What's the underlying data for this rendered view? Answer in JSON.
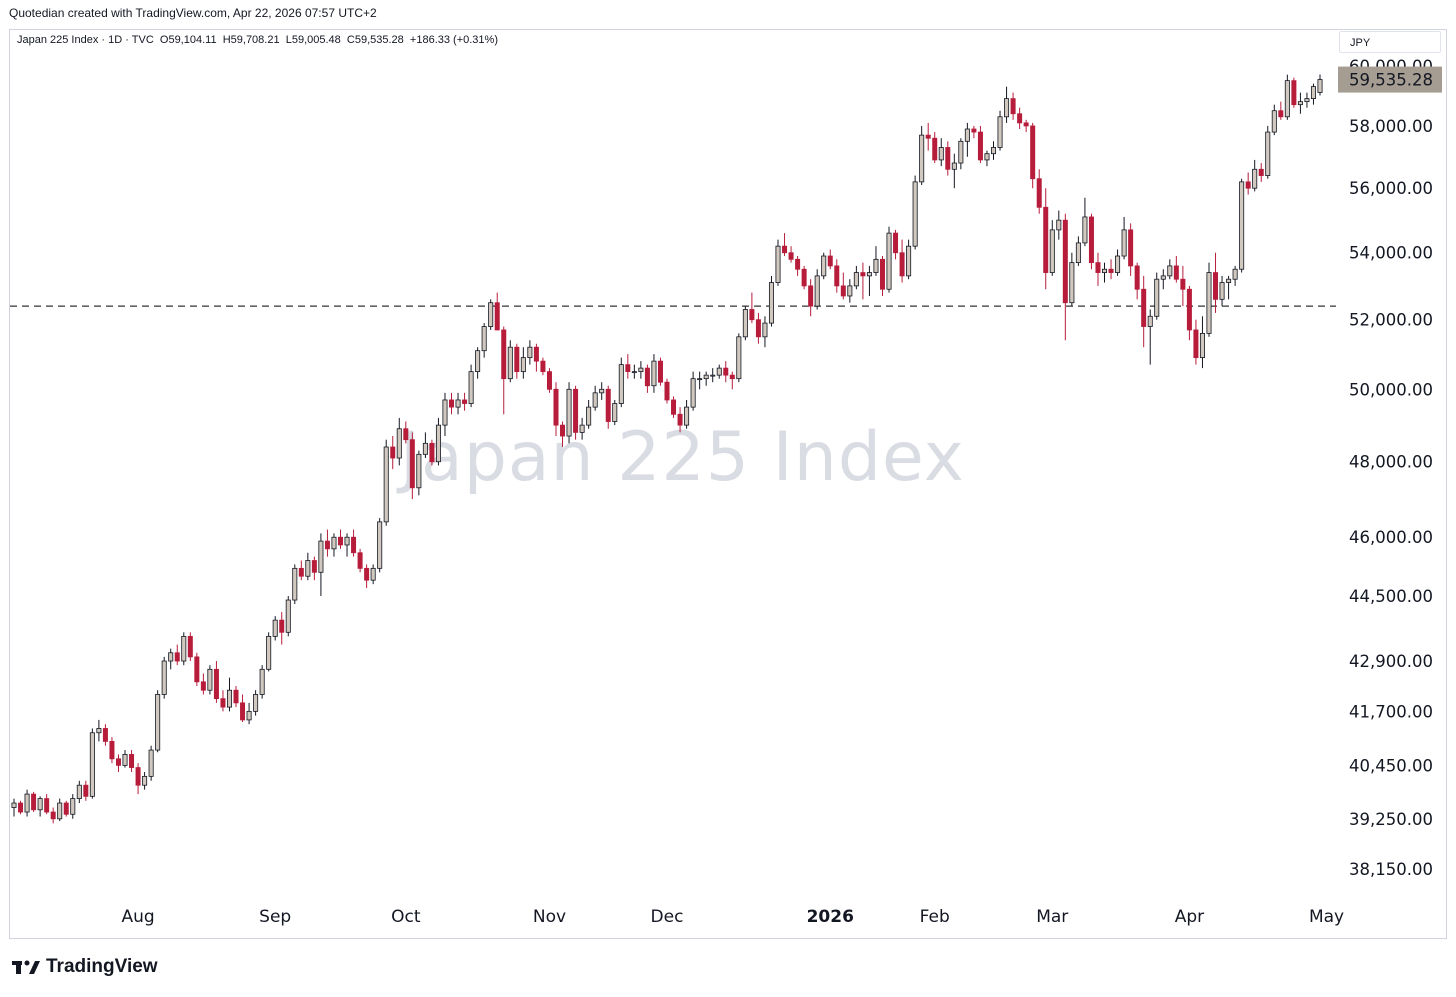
{
  "header": {
    "credit": "Quotedian created with TradingView.com, Apr 22, 2026 07:57 UTC+2"
  },
  "symbol": {
    "name": "Japan 225 Index · 1D · TVC",
    "o": "O59,104.11",
    "h": "H59,708.21",
    "l": "L59,005.48",
    "c": "C59,535.28",
    "chg": "+186.33 (+0.31%)"
  },
  "currency": "JPY",
  "watermark": "Japan 225 Index",
  "footer": {
    "brand": "TradingView",
    "logo_icon": "tradingview-logo-icon"
  },
  "colors": {
    "up": "#d1c9bf",
    "down": "#b71c3b",
    "wick": "#131722",
    "last_price_bg": "#a59c92",
    "level_line": "#333333"
  },
  "chart_data": {
    "type": "candlestick",
    "title": "Japan 225 Index",
    "scale": "log",
    "ylim": [
      37600,
      60400
    ],
    "yticks": [
      {
        "value": 60000,
        "label": "60,000.00"
      },
      {
        "value": 58000,
        "label": "58,000.00"
      },
      {
        "value": 56000,
        "label": "56,000.00"
      },
      {
        "value": 54000,
        "label": "54,000.00"
      },
      {
        "value": 52000,
        "label": "52,000.00"
      },
      {
        "value": 50000,
        "label": "50,000.00"
      },
      {
        "value": 48000,
        "label": "48,000.00"
      },
      {
        "value": 46000,
        "label": "46,000.00"
      },
      {
        "value": 44500,
        "label": "44,500.00"
      },
      {
        "value": 42900,
        "label": "42,900.00"
      },
      {
        "value": 41700,
        "label": "41,700.00"
      },
      {
        "value": 40450,
        "label": "40,450.00"
      },
      {
        "value": 39250,
        "label": "39,250.00"
      },
      {
        "value": 38150,
        "label": "38,150.00"
      }
    ],
    "xticks": [
      {
        "label": "Aug",
        "index": 19,
        "bold": false
      },
      {
        "label": "Sep",
        "index": 40,
        "bold": false
      },
      {
        "label": "Oct",
        "index": 60,
        "bold": false
      },
      {
        "label": "Nov",
        "index": 82,
        "bold": false
      },
      {
        "label": "Dec",
        "index": 100,
        "bold": false
      },
      {
        "label": "2026",
        "index": 125,
        "bold": true
      },
      {
        "label": "Feb",
        "index": 141,
        "bold": false
      },
      {
        "label": "Mar",
        "index": 159,
        "bold": false
      },
      {
        "label": "Apr",
        "index": 180,
        "bold": false
      },
      {
        "label": "May",
        "index": 201,
        "bold": false
      }
    ],
    "level_line": 52400,
    "last_price": {
      "value": 59535.28,
      "label": "59,535.28"
    },
    "candles": [
      [
        39500,
        39700,
        39300,
        39600
      ],
      [
        39600,
        39650,
        39350,
        39400
      ],
      [
        39400,
        39900,
        39300,
        39800
      ],
      [
        39800,
        39850,
        39400,
        39450
      ],
      [
        39450,
        39750,
        39300,
        39700
      ],
      [
        39700,
        39800,
        39350,
        39400
      ],
      [
        39400,
        39500,
        39150,
        39250
      ],
      [
        39250,
        39700,
        39200,
        39600
      ],
      [
        39600,
        39650,
        39300,
        39350
      ],
      [
        39350,
        39800,
        39250,
        39700
      ],
      [
        39700,
        40100,
        39600,
        40000
      ],
      [
        40000,
        40100,
        39650,
        39750
      ],
      [
        39750,
        41300,
        39700,
        41200
      ],
      [
        41200,
        41500,
        41000,
        41300
      ],
      [
        41300,
        41400,
        40900,
        41000
      ],
      [
        41000,
        41100,
        40500,
        40600
      ],
      [
        40600,
        40700,
        40300,
        40450
      ],
      [
        40450,
        40800,
        40400,
        40700
      ],
      [
        40700,
        40800,
        40300,
        40400
      ],
      [
        40400,
        40500,
        39800,
        40000
      ],
      [
        40000,
        40300,
        39900,
        40200
      ],
      [
        40200,
        40900,
        40100,
        40800
      ],
      [
        40800,
        42200,
        40750,
        42100
      ],
      [
        42100,
        43000,
        42000,
        42900
      ],
      [
        42900,
        43200,
        42700,
        43100
      ],
      [
        43100,
        43300,
        42800,
        42900
      ],
      [
        42900,
        43600,
        42800,
        43500
      ],
      [
        43500,
        43600,
        42900,
        43000
      ],
      [
        43000,
        43100,
        42300,
        42400
      ],
      [
        42400,
        42600,
        42100,
        42200
      ],
      [
        42200,
        42800,
        42100,
        42700
      ],
      [
        42700,
        42900,
        41900,
        42000
      ],
      [
        42000,
        42200,
        41700,
        41800
      ],
      [
        41800,
        42500,
        41700,
        42200
      ],
      [
        42200,
        42300,
        41800,
        41900
      ],
      [
        41900,
        42100,
        41450,
        41500
      ],
      [
        41500,
        41900,
        41400,
        41700
      ],
      [
        41700,
        42200,
        41600,
        42100
      ],
      [
        42100,
        42800,
        42000,
        42700
      ],
      [
        42700,
        43600,
        42650,
        43500
      ],
      [
        43500,
        44000,
        43400,
        43900
      ],
      [
        43900,
        44100,
        43300,
        43600
      ],
      [
        43600,
        44500,
        43500,
        44400
      ],
      [
        44400,
        45300,
        44300,
        45200
      ],
      [
        45200,
        45400,
        44900,
        45000
      ],
      [
        45000,
        45600,
        44900,
        45400
      ],
      [
        45400,
        45500,
        44900,
        45100
      ],
      [
        45100,
        46100,
        44500,
        45900
      ],
      [
        45900,
        46200,
        45500,
        45700
      ],
      [
        45700,
        46100,
        45500,
        46000
      ],
      [
        46000,
        46200,
        45700,
        45800
      ],
      [
        45800,
        46100,
        45500,
        46000
      ],
      [
        46000,
        46200,
        45500,
        45600
      ],
      [
        45600,
        45700,
        45100,
        45200
      ],
      [
        45200,
        45300,
        44700,
        44900
      ],
      [
        44900,
        45300,
        44800,
        45200
      ],
      [
        45200,
        46500,
        45100,
        46400
      ],
      [
        46400,
        48600,
        46300,
        48400
      ],
      [
        48400,
        48700,
        47800,
        48100
      ],
      [
        48100,
        49200,
        47900,
        48900
      ],
      [
        48900,
        49100,
        48500,
        48600
      ],
      [
        48600,
        48800,
        47000,
        47300
      ],
      [
        47300,
        48300,
        47100,
        48200
      ],
      [
        48200,
        48800,
        48100,
        48500
      ],
      [
        48500,
        48600,
        47900,
        48000
      ],
      [
        48000,
        49200,
        47900,
        49000
      ],
      [
        49000,
        49900,
        48700,
        49700
      ],
      [
        49700,
        49900,
        49300,
        49500
      ],
      [
        49500,
        49900,
        49300,
        49700
      ],
      [
        49700,
        49900,
        49400,
        49600
      ],
      [
        49600,
        50700,
        49500,
        50500
      ],
      [
        50500,
        51200,
        50300,
        51100
      ],
      [
        51100,
        51900,
        50900,
        51800
      ],
      [
        51800,
        52600,
        51700,
        52500
      ],
      [
        52500,
        52800,
        51700,
        51700
      ],
      [
        51700,
        51800,
        49300,
        50300
      ],
      [
        50300,
        51400,
        50200,
        51200
      ],
      [
        51200,
        51300,
        50300,
        50500
      ],
      [
        50500,
        51200,
        50300,
        50900
      ],
      [
        50900,
        51400,
        50700,
        51200
      ],
      [
        51200,
        51300,
        50500,
        50800
      ],
      [
        50800,
        50900,
        50400,
        50500
      ],
      [
        50500,
        50600,
        49900,
        50000
      ],
      [
        50000,
        50200,
        48700,
        49000
      ],
      [
        49000,
        49100,
        48400,
        48700
      ],
      [
        48700,
        50200,
        48500,
        50000
      ],
      [
        50000,
        50100,
        48600,
        48800
      ],
      [
        48800,
        49200,
        48600,
        49000
      ],
      [
        49000,
        49700,
        48900,
        49500
      ],
      [
        49500,
        50100,
        49400,
        49900
      ],
      [
        49900,
        50200,
        49700,
        50000
      ],
      [
        50000,
        50100,
        48900,
        49100
      ],
      [
        49100,
        49700,
        49000,
        49600
      ],
      [
        49600,
        50900,
        49500,
        50700
      ],
      [
        50700,
        51000,
        50300,
        50500
      ],
      [
        50500,
        50700,
        50300,
        50500
      ],
      [
        50500,
        50800,
        50300,
        50600
      ],
      [
        50600,
        50700,
        49900,
        50100
      ],
      [
        50100,
        51000,
        49900,
        50800
      ],
      [
        50800,
        50900,
        50100,
        50200
      ],
      [
        50200,
        50300,
        49600,
        49700
      ],
      [
        49700,
        49800,
        49200,
        49300
      ],
      [
        49300,
        49500,
        48800,
        49000
      ],
      [
        49000,
        49700,
        48900,
        49500
      ],
      [
        49500,
        50500,
        49400,
        50300
      ],
      [
        50300,
        50500,
        50000,
        50300
      ],
      [
        50300,
        50500,
        50100,
        50400
      ],
      [
        50400,
        50600,
        50200,
        50400
      ],
      [
        50400,
        50700,
        50300,
        50600
      ],
      [
        50600,
        50800,
        50200,
        50400
      ],
      [
        50400,
        50500,
        50000,
        50300
      ],
      [
        50300,
        51600,
        50200,
        51500
      ],
      [
        51500,
        52400,
        51400,
        52300
      ],
      [
        52300,
        52800,
        51900,
        52000
      ],
      [
        52000,
        52200,
        51300,
        51500
      ],
      [
        51500,
        52100,
        51200,
        51900
      ],
      [
        51900,
        53300,
        51800,
        53100
      ],
      [
        53100,
        54400,
        53000,
        54200
      ],
      [
        54200,
        54600,
        53900,
        54000
      ],
      [
        54000,
        54200,
        53700,
        53800
      ],
      [
        53800,
        53900,
        53300,
        53500
      ],
      [
        53500,
        53600,
        52900,
        53000
      ],
      [
        53000,
        53200,
        52100,
        52400
      ],
      [
        52400,
        53500,
        52300,
        53300
      ],
      [
        53300,
        54000,
        53200,
        53900
      ],
      [
        53900,
        54100,
        53500,
        53600
      ],
      [
        53600,
        53800,
        52800,
        53000
      ],
      [
        53000,
        53400,
        52600,
        52700
      ],
      [
        52700,
        53200,
        52500,
        53000
      ],
      [
        53000,
        53600,
        52900,
        53400
      ],
      [
        53400,
        53700,
        52600,
        53300
      ],
      [
        53300,
        53600,
        52700,
        53400
      ],
      [
        53400,
        54200,
        53300,
        53800
      ],
      [
        53800,
        53900,
        52700,
        52900
      ],
      [
        52900,
        54800,
        52800,
        54600
      ],
      [
        54600,
        54700,
        53800,
        54000
      ],
      [
        54000,
        54400,
        53100,
        53300
      ],
      [
        53300,
        54400,
        53200,
        54200
      ],
      [
        54200,
        56400,
        54100,
        56200
      ],
      [
        56200,
        58000,
        56100,
        57700
      ],
      [
        57700,
        58100,
        57200,
        57600
      ],
      [
        57600,
        57800,
        56800,
        56900
      ],
      [
        56900,
        57600,
        56700,
        57300
      ],
      [
        57300,
        57500,
        56400,
        56600
      ],
      [
        56600,
        57100,
        56000,
        56800
      ],
      [
        56800,
        57600,
        56600,
        57500
      ],
      [
        57500,
        58100,
        57000,
        57900
      ],
      [
        57900,
        58000,
        57600,
        57800
      ],
      [
        57800,
        58000,
        56800,
        56900
      ],
      [
        56900,
        57200,
        56700,
        57100
      ],
      [
        57100,
        57500,
        56900,
        57300
      ],
      [
        57300,
        58500,
        57200,
        58300
      ],
      [
        58300,
        59300,
        58100,
        58900
      ],
      [
        58900,
        59100,
        58200,
        58400
      ],
      [
        58400,
        58600,
        57900,
        58100
      ],
      [
        58100,
        58200,
        57800,
        58000
      ],
      [
        58000,
        58100,
        56000,
        56300
      ],
      [
        56300,
        56600,
        55200,
        55400
      ],
      [
        55400,
        56000,
        52900,
        53400
      ],
      [
        53400,
        55000,
        53300,
        54700
      ],
      [
        54700,
        55300,
        54400,
        55000
      ],
      [
        55000,
        55200,
        51400,
        52500
      ],
      [
        52500,
        54000,
        52400,
        53700
      ],
      [
        53700,
        54500,
        53600,
        54300
      ],
      [
        54300,
        55700,
        54200,
        55100
      ],
      [
        55100,
        55200,
        53500,
        53700
      ],
      [
        53700,
        54000,
        53000,
        53400
      ],
      [
        53400,
        53700,
        53100,
        53500
      ],
      [
        53500,
        53800,
        53200,
        53400
      ],
      [
        53400,
        54100,
        53300,
        53900
      ],
      [
        53900,
        55100,
        53800,
        54700
      ],
      [
        54700,
        54900,
        53300,
        53600
      ],
      [
        53600,
        53700,
        52600,
        52900
      ],
      [
        52900,
        53300,
        51200,
        51800
      ],
      [
        51800,
        52300,
        50700,
        52100
      ],
      [
        52100,
        53400,
        52000,
        53200
      ],
      [
        53200,
        53500,
        52900,
        53300
      ],
      [
        53300,
        53800,
        53200,
        53600
      ],
      [
        53600,
        53900,
        53100,
        53200
      ],
      [
        53200,
        53600,
        52400,
        52900
      ],
      [
        52900,
        53000,
        51400,
        51700
      ],
      [
        51700,
        52000,
        50700,
        50900
      ],
      [
        50900,
        52100,
        50600,
        51600
      ],
      [
        51600,
        53700,
        51500,
        53400
      ],
      [
        53400,
        54000,
        52200,
        52600
      ],
      [
        52600,
        53300,
        52400,
        53100
      ],
      [
        53100,
        53300,
        52600,
        53200
      ],
      [
        53200,
        53600,
        53000,
        53500
      ],
      [
        53500,
        56300,
        53400,
        56200
      ],
      [
        56200,
        56500,
        55800,
        56000
      ],
      [
        56000,
        56900,
        55900,
        56600
      ],
      [
        56600,
        56800,
        56200,
        56400
      ],
      [
        56400,
        58000,
        56300,
        57800
      ],
      [
        57800,
        58700,
        57700,
        58500
      ],
      [
        58500,
        58800,
        58200,
        58300
      ],
      [
        58300,
        59700,
        58200,
        59500
      ],
      [
        59500,
        59600,
        58600,
        58700
      ],
      [
        58700,
        59100,
        58400,
        58800
      ],
      [
        58800,
        59100,
        58600,
        58900
      ],
      [
        58900,
        59400,
        58700,
        59300
      ],
      [
        59104.11,
        59708.21,
        59005.48,
        59535.28
      ]
    ]
  }
}
